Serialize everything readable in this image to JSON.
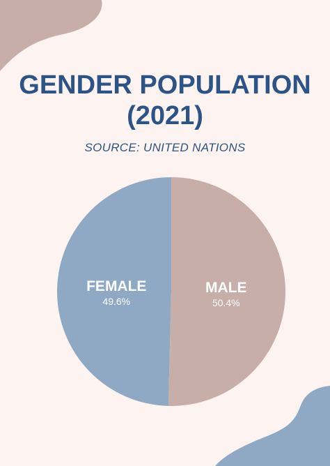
{
  "header": {
    "title_line1": "GENDER POPULATION",
    "title_line2": "(2021)",
    "subtitle": "SOURCE: UNITED NATIONS"
  },
  "colors": {
    "background": "#fdf4f2",
    "title": "#2c5486",
    "female": "#8fa9c4",
    "male": "#c7aea8",
    "label": "#ffffff"
  },
  "chart_data": {
    "type": "pie",
    "title": "GENDER POPULATION (2021)",
    "subtitle": "SOURCE: UNITED NATIONS",
    "categories": [
      "FEMALE",
      "MALE"
    ],
    "values": [
      49.6,
      50.4
    ],
    "value_labels": [
      "49.6%",
      "50.4%"
    ],
    "unit": "%",
    "legend": "none"
  }
}
